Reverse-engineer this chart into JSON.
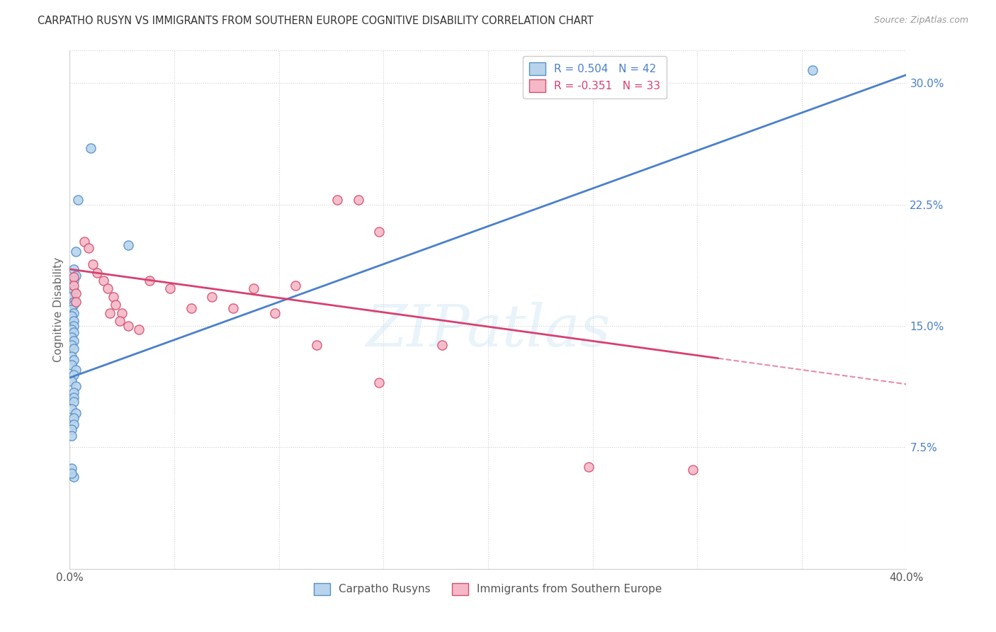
{
  "title": "CARPATHO RUSYN VS IMMIGRANTS FROM SOUTHERN EUROPE COGNITIVE DISABILITY CORRELATION CHART",
  "source": "Source: ZipAtlas.com",
  "ylabel": "Cognitive Disability",
  "xlim": [
    0.0,
    0.4
  ],
  "ylim": [
    0.0,
    0.32
  ],
  "xtick_pos": [
    0.0,
    0.05,
    0.1,
    0.15,
    0.2,
    0.25,
    0.3,
    0.35,
    0.4
  ],
  "xtick_labels": [
    "0.0%",
    "",
    "",
    "",
    "",
    "",
    "",
    "",
    "40.0%"
  ],
  "ytick_pos": [
    0.0,
    0.075,
    0.15,
    0.225,
    0.3
  ],
  "ytick_labels": [
    "",
    "7.5%",
    "15.0%",
    "22.5%",
    "30.0%"
  ],
  "watermark_text": "ZIPatlas",
  "blue_R": "0.504",
  "blue_N": "42",
  "pink_R": "-0.351",
  "pink_N": "33",
  "blue_fill": "#b8d4ec",
  "pink_fill": "#f5b8c8",
  "blue_edge": "#5590cc",
  "pink_edge": "#d45070",
  "blue_line_color": "#4a80cc",
  "pink_line_color": "#d84070",
  "grid_color": "#d0d0d0",
  "blue_line": [
    [
      0.0,
      0.118
    ],
    [
      0.4,
      0.305
    ]
  ],
  "pink_line_solid": [
    [
      0.0,
      0.185
    ],
    [
      0.31,
      0.13
    ]
  ],
  "pink_line_dash": [
    [
      0.31,
      0.13
    ],
    [
      0.4,
      0.114
    ]
  ],
  "blue_scatter": [
    [
      0.004,
      0.228
    ],
    [
      0.003,
      0.196
    ],
    [
      0.002,
      0.185
    ],
    [
      0.003,
      0.181
    ],
    [
      0.002,
      0.178
    ],
    [
      0.002,
      0.172
    ],
    [
      0.001,
      0.168
    ],
    [
      0.002,
      0.165
    ],
    [
      0.002,
      0.163
    ],
    [
      0.001,
      0.16
    ],
    [
      0.002,
      0.158
    ],
    [
      0.001,
      0.156
    ],
    [
      0.002,
      0.153
    ],
    [
      0.002,
      0.15
    ],
    [
      0.001,
      0.148
    ],
    [
      0.002,
      0.146
    ],
    [
      0.001,
      0.143
    ],
    [
      0.002,
      0.141
    ],
    [
      0.001,
      0.138
    ],
    [
      0.002,
      0.136
    ],
    [
      0.001,
      0.131
    ],
    [
      0.002,
      0.129
    ],
    [
      0.001,
      0.126
    ],
    [
      0.003,
      0.123
    ],
    [
      0.002,
      0.12
    ],
    [
      0.001,
      0.116
    ],
    [
      0.003,
      0.113
    ],
    [
      0.002,
      0.109
    ],
    [
      0.002,
      0.106
    ],
    [
      0.002,
      0.103
    ],
    [
      0.001,
      0.099
    ],
    [
      0.003,
      0.096
    ],
    [
      0.002,
      0.093
    ],
    [
      0.002,
      0.089
    ],
    [
      0.001,
      0.086
    ],
    [
      0.001,
      0.082
    ],
    [
      0.001,
      0.062
    ],
    [
      0.002,
      0.057
    ],
    [
      0.01,
      0.26
    ],
    [
      0.028,
      0.2
    ],
    [
      0.355,
      0.308
    ],
    [
      0.001,
      0.059
    ]
  ],
  "pink_scatter": [
    [
      0.002,
      0.18
    ],
    [
      0.002,
      0.175
    ],
    [
      0.003,
      0.17
    ],
    [
      0.003,
      0.165
    ],
    [
      0.007,
      0.202
    ],
    [
      0.009,
      0.198
    ],
    [
      0.011,
      0.188
    ],
    [
      0.013,
      0.183
    ],
    [
      0.016,
      0.178
    ],
    [
      0.018,
      0.173
    ],
    [
      0.021,
      0.168
    ],
    [
      0.022,
      0.163
    ],
    [
      0.025,
      0.158
    ],
    [
      0.128,
      0.228
    ],
    [
      0.138,
      0.228
    ],
    [
      0.148,
      0.208
    ],
    [
      0.019,
      0.158
    ],
    [
      0.024,
      0.153
    ],
    [
      0.028,
      0.15
    ],
    [
      0.033,
      0.148
    ],
    [
      0.038,
      0.178
    ],
    [
      0.048,
      0.173
    ],
    [
      0.058,
      0.161
    ],
    [
      0.068,
      0.168
    ],
    [
      0.078,
      0.161
    ],
    [
      0.088,
      0.173
    ],
    [
      0.098,
      0.158
    ],
    [
      0.108,
      0.175
    ],
    [
      0.118,
      0.138
    ],
    [
      0.178,
      0.138
    ],
    [
      0.248,
      0.063
    ],
    [
      0.298,
      0.061
    ],
    [
      0.148,
      0.115
    ]
  ]
}
